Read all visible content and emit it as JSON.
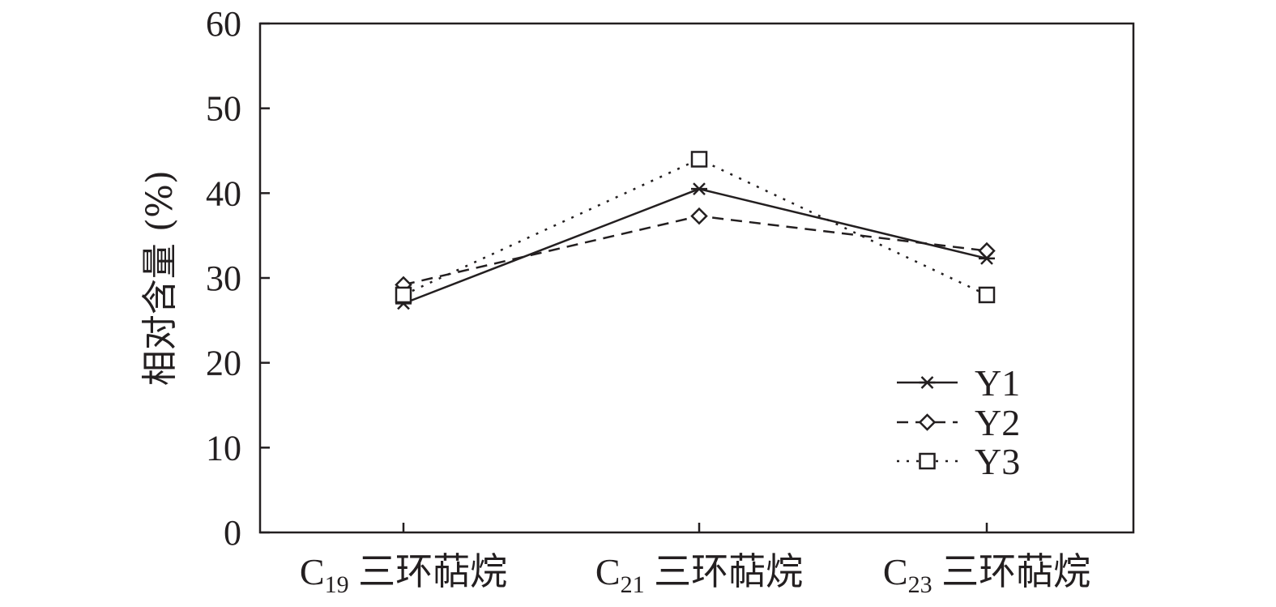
{
  "chart_data": {
    "type": "line",
    "title": "",
    "xlabel": "",
    "ylabel": "相对含量 (%)",
    "ylim": [
      0,
      60
    ],
    "yticks": [
      "0",
      "10",
      "20",
      "30",
      "40",
      "50",
      "60"
    ],
    "categories": [
      {
        "prefix": "C",
        "sub": "19",
        "suffix": " 三环萜烷"
      },
      {
        "prefix": "C",
        "sub": "21",
        "suffix": " 三环萜烷"
      },
      {
        "prefix": "C",
        "sub": "23",
        "suffix": " 三环萜烷"
      }
    ],
    "series": [
      {
        "name": "Y1",
        "values": [
          27.0,
          40.5,
          32.3
        ],
        "line": "solid",
        "marker": "asterisk"
      },
      {
        "name": "Y2",
        "values": [
          29.2,
          37.3,
          33.2
        ],
        "line": "dashed",
        "marker": "diamond"
      },
      {
        "name": "Y3",
        "values": [
          28.0,
          44.0,
          28.0
        ],
        "line": "dotted",
        "marker": "square"
      }
    ],
    "legend_position": "bottom-right",
    "grid": false,
    "colors": {
      "ink": "#231f20",
      "background": "#ffffff"
    }
  }
}
